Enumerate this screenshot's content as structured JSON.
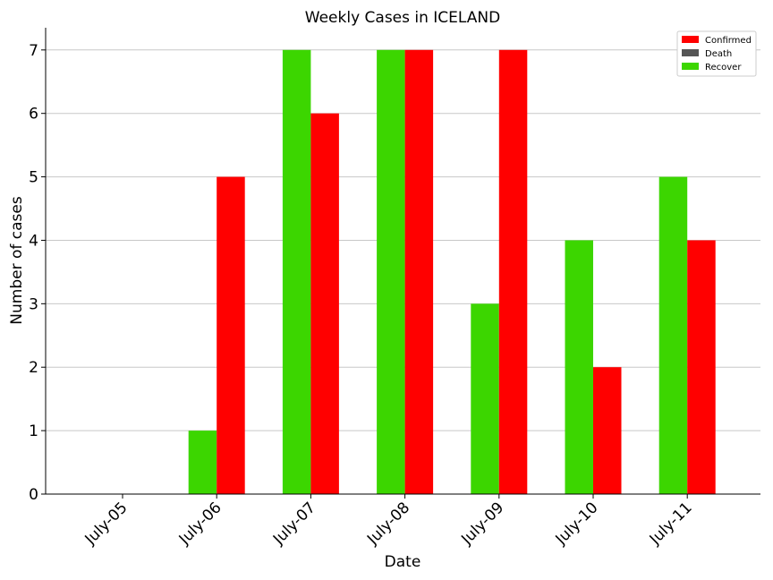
{
  "chart_data": {
    "type": "bar",
    "title": "Weekly Cases in ICELAND",
    "xlabel": "Date",
    "ylabel": "Number of cases",
    "categories": [
      "July-05",
      "July-06",
      "July-07",
      "July-08",
      "July-09",
      "July-10",
      "July-11"
    ],
    "ylim": [
      0,
      7.35
    ],
    "yticks": [
      0,
      1,
      2,
      3,
      4,
      5,
      6,
      7
    ],
    "grid": "horizontal",
    "legend_position": "top-right",
    "series": [
      {
        "name": "Recover",
        "color": "#3cd600",
        "values": [
          0,
          1,
          7,
          7,
          3,
          4,
          5
        ],
        "offset": -1
      },
      {
        "name": "Death",
        "color": "#555555",
        "values": [
          0,
          0,
          0,
          0,
          0,
          0,
          0
        ],
        "offset": 0
      },
      {
        "name": "Confirmed",
        "color": "#ff0000",
        "values": [
          0,
          5,
          6,
          7,
          7,
          2,
          4
        ],
        "offset": 1
      }
    ],
    "legend_order": [
      "Confirmed",
      "Death",
      "Recover"
    ]
  }
}
